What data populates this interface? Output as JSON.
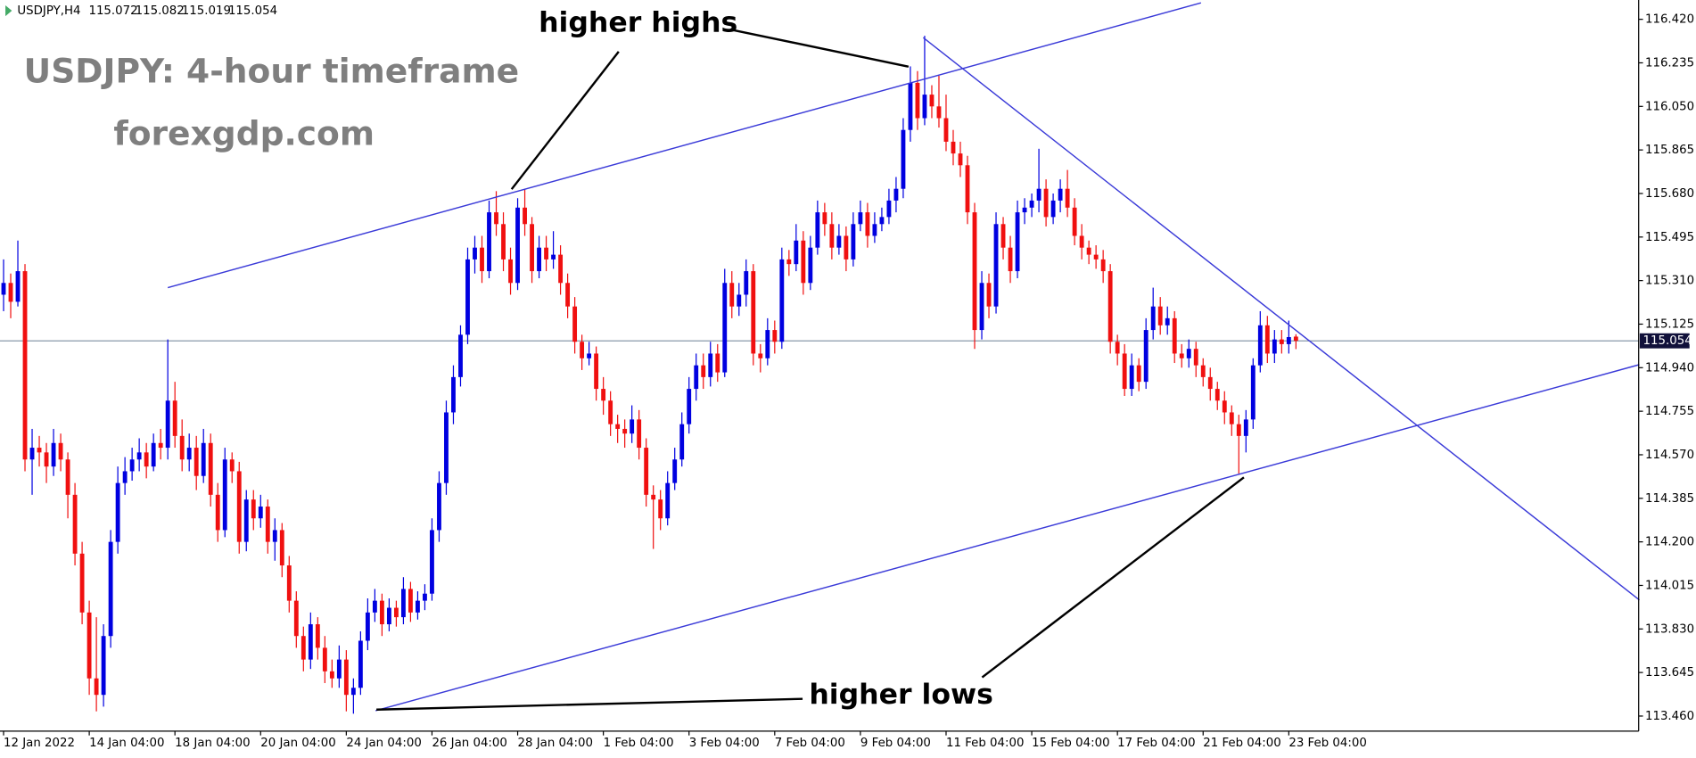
{
  "chart_data": {
    "type": "candlestick",
    "symbol": "USDJPY,H4",
    "title": "USDJPY: 4-hour timeframe",
    "subtitle": "forexgdp.com",
    "annotations": [
      "higher highs",
      "higher lows"
    ],
    "up_color": "#0000e0",
    "down_color": "#f01010",
    "trendline_color": "#3a3ad8",
    "price_line_color": "#8899aa",
    "grid": false,
    "xlim": [
      -0.5,
      229
    ],
    "ylim": [
      113.396,
      116.502
    ],
    "yticks": [
      {
        "value": 116.42,
        "label": "116.420"
      },
      116.235,
      {
        "value": 116.05,
        "label": "116.050"
      },
      115.865,
      {
        "value": 115.68,
        "label": "115.680"
      },
      115.495,
      {
        "value": 115.31,
        "label": "115.310"
      },
      115.125,
      {
        "value": 114.94,
        "label": "114.940"
      },
      114.755,
      {
        "value": 114.57,
        "label": "114.570"
      },
      114.385,
      {
        "value": 114.2,
        "label": "114.200"
      },
      114.015,
      {
        "value": 113.83,
        "label": "113.830"
      },
      113.645,
      {
        "value": 113.46,
        "label": "113.460"
      }
    ],
    "xticks": [
      {
        "value": 0,
        "label": "12 Jan 2022"
      },
      {
        "value": 12,
        "label": "14 Jan 04:00"
      },
      {
        "value": 24,
        "label": "18 Jan 04:00"
      },
      {
        "value": 36,
        "label": "20 Jan 04:00"
      },
      {
        "value": 48,
        "label": "24 Jan 04:00"
      },
      {
        "value": 60,
        "label": "26 Jan 04:00"
      },
      {
        "value": 72,
        "label": "28 Jan 04:00"
      },
      {
        "value": 84,
        "label": "1 Feb 04:00"
      },
      {
        "value": 96,
        "label": "3 Feb 04:00"
      },
      {
        "value": 108,
        "label": "7 Feb 04:00"
      },
      {
        "value": 120,
        "label": "9 Feb 04:00"
      },
      {
        "value": 132,
        "label": "11 Feb 04:00"
      },
      {
        "value": 144,
        "label": "15 Feb 04:00"
      },
      {
        "value": 156,
        "label": "17 Feb 04:00"
      },
      {
        "value": 168,
        "label": "21 Feb 04:00"
      },
      {
        "value": 180,
        "label": "23 Feb 04:00"
      }
    ],
    "trendlines": [
      {
        "x": [
          23,
          167.7
        ],
        "y": [
          115.28,
          116.49
        ]
      },
      {
        "x": [
          52.1,
          229.1
        ],
        "y": [
          113.483,
          114.953
        ]
      },
      {
        "x": [
          128.8,
          229.1
        ],
        "y": [
          116.342,
          113.953
        ]
      }
    ],
    "ohlc": [
      [
        115.25,
        115.4,
        115.18,
        115.3
      ],
      [
        115.3,
        115.34,
        115.15,
        115.22
      ],
      [
        115.22,
        115.48,
        115.2,
        115.35
      ],
      [
        115.35,
        115.38,
        114.5,
        114.55
      ],
      [
        114.55,
        114.68,
        114.4,
        114.6
      ],
      [
        114.6,
        114.65,
        114.52,
        114.58
      ],
      [
        114.58,
        114.62,
        114.45,
        114.52
      ],
      [
        114.52,
        114.68,
        114.48,
        114.62
      ],
      [
        114.62,
        114.66,
        114.5,
        114.55
      ],
      [
        114.55,
        114.58,
        114.3,
        114.4
      ],
      [
        114.4,
        114.45,
        114.1,
        114.15
      ],
      [
        114.15,
        114.2,
        113.85,
        113.9
      ],
      [
        113.9,
        113.95,
        113.55,
        113.62
      ],
      [
        113.62,
        113.88,
        113.48,
        113.55
      ],
      [
        113.55,
        113.85,
        113.5,
        113.8
      ],
      [
        113.8,
        114.25,
        113.75,
        114.2
      ],
      [
        114.2,
        114.52,
        114.15,
        114.45
      ],
      [
        114.45,
        114.56,
        114.4,
        114.5
      ],
      [
        114.5,
        114.6,
        114.46,
        114.55
      ],
      [
        114.55,
        114.64,
        114.5,
        114.58
      ],
      [
        114.58,
        114.62,
        114.47,
        114.52
      ],
      [
        114.52,
        114.66,
        114.5,
        114.62
      ],
      [
        114.62,
        114.68,
        114.55,
        114.6
      ],
      [
        114.6,
        115.06,
        114.55,
        114.8
      ],
      [
        114.8,
        114.88,
        114.6,
        114.65
      ],
      [
        114.65,
        114.72,
        114.5,
        114.55
      ],
      [
        114.55,
        114.66,
        114.5,
        114.6
      ],
      [
        114.6,
        114.65,
        114.42,
        114.48
      ],
      [
        114.48,
        114.68,
        114.45,
        114.62
      ],
      [
        114.62,
        114.66,
        114.35,
        114.4
      ],
      [
        114.4,
        114.45,
        114.2,
        114.25
      ],
      [
        114.25,
        114.6,
        114.22,
        114.55
      ],
      [
        114.55,
        114.58,
        114.45,
        114.5
      ],
      [
        114.5,
        114.54,
        114.15,
        114.2
      ],
      [
        114.2,
        114.42,
        114.16,
        114.38
      ],
      [
        114.38,
        114.42,
        114.25,
        114.3
      ],
      [
        114.3,
        114.4,
        114.26,
        114.35
      ],
      [
        114.35,
        114.38,
        114.15,
        114.2
      ],
      [
        114.2,
        114.3,
        114.12,
        114.25
      ],
      [
        114.25,
        114.28,
        114.05,
        114.1
      ],
      [
        114.1,
        114.14,
        113.9,
        113.95
      ],
      [
        113.95,
        113.99,
        113.75,
        113.8
      ],
      [
        113.8,
        113.84,
        113.65,
        113.7
      ],
      [
        113.7,
        113.9,
        113.66,
        113.85
      ],
      [
        113.85,
        113.88,
        113.7,
        113.75
      ],
      [
        113.75,
        113.8,
        113.6,
        113.65
      ],
      [
        113.65,
        113.7,
        113.58,
        113.62
      ],
      [
        113.62,
        113.76,
        113.58,
        113.7
      ],
      [
        113.7,
        113.74,
        113.48,
        113.55
      ],
      [
        113.55,
        113.62,
        113.47,
        113.58
      ],
      [
        113.58,
        113.82,
        113.55,
        113.78
      ],
      [
        113.78,
        113.96,
        113.74,
        113.9
      ],
      [
        113.9,
        114.0,
        113.86,
        113.95
      ],
      [
        113.95,
        113.98,
        113.8,
        113.85
      ],
      [
        113.85,
        113.96,
        113.82,
        113.92
      ],
      [
        113.92,
        113.95,
        113.84,
        113.88
      ],
      [
        113.88,
        114.05,
        113.85,
        114.0
      ],
      [
        114.0,
        114.03,
        113.86,
        113.9
      ],
      [
        113.9,
        113.99,
        113.87,
        113.95
      ],
      [
        113.95,
        114.02,
        113.91,
        113.98
      ],
      [
        113.98,
        114.3,
        113.95,
        114.25
      ],
      [
        114.25,
        114.5,
        114.2,
        114.45
      ],
      [
        114.45,
        114.8,
        114.4,
        114.75
      ],
      [
        114.75,
        114.95,
        114.7,
        114.9
      ],
      [
        114.9,
        115.12,
        114.86,
        115.08
      ],
      [
        115.08,
        115.45,
        115.04,
        115.4
      ],
      [
        115.4,
        115.5,
        115.34,
        115.45
      ],
      [
        115.45,
        115.5,
        115.3,
        115.35
      ],
      [
        115.35,
        115.65,
        115.32,
        115.6
      ],
      [
        115.6,
        115.69,
        115.5,
        115.55
      ],
      [
        115.55,
        115.6,
        115.35,
        115.4
      ],
      [
        115.4,
        115.45,
        115.25,
        115.3
      ],
      [
        115.3,
        115.66,
        115.27,
        115.62
      ],
      [
        115.62,
        115.7,
        115.5,
        115.55
      ],
      [
        115.55,
        115.58,
        115.3,
        115.35
      ],
      [
        115.35,
        115.5,
        115.32,
        115.45
      ],
      [
        115.45,
        115.5,
        115.35,
        115.4
      ],
      [
        115.4,
        115.52,
        115.36,
        115.42
      ],
      [
        115.42,
        115.46,
        115.25,
        115.3
      ],
      [
        115.3,
        115.34,
        115.15,
        115.2
      ],
      [
        115.2,
        115.24,
        115.0,
        115.05
      ],
      [
        115.05,
        115.08,
        114.93,
        114.98
      ],
      [
        114.98,
        115.05,
        114.95,
        115.0
      ],
      [
        115.0,
        115.03,
        114.8,
        114.85
      ],
      [
        114.85,
        114.9,
        114.74,
        114.8
      ],
      [
        114.8,
        114.84,
        114.65,
        114.7
      ],
      [
        114.7,
        114.74,
        114.62,
        114.68
      ],
      [
        114.68,
        114.72,
        114.6,
        114.66
      ],
      [
        114.66,
        114.78,
        114.62,
        114.72
      ],
      [
        114.72,
        114.76,
        114.55,
        114.6
      ],
      [
        114.6,
        114.64,
        114.35,
        114.4
      ],
      [
        114.4,
        114.44,
        114.17,
        114.38
      ],
      [
        114.38,
        114.42,
        114.25,
        114.3
      ],
      [
        114.3,
        114.5,
        114.27,
        114.45
      ],
      [
        114.45,
        114.6,
        114.42,
        114.55
      ],
      [
        114.55,
        114.75,
        114.52,
        114.7
      ],
      [
        114.7,
        114.9,
        114.66,
        114.85
      ],
      [
        114.85,
        115.0,
        114.8,
        114.95
      ],
      [
        114.95,
        115.0,
        114.85,
        114.9
      ],
      [
        114.9,
        115.05,
        114.86,
        115.0
      ],
      [
        115.0,
        115.04,
        114.88,
        114.92
      ],
      [
        114.92,
        115.36,
        114.9,
        115.3
      ],
      [
        115.3,
        115.35,
        115.15,
        115.2
      ],
      [
        115.2,
        115.3,
        115.16,
        115.25
      ],
      [
        115.25,
        115.4,
        115.2,
        115.35
      ],
      [
        115.35,
        115.38,
        114.95,
        115.0
      ],
      [
        115.0,
        115.04,
        114.92,
        114.98
      ],
      [
        114.98,
        115.15,
        114.95,
        115.1
      ],
      [
        115.1,
        115.14,
        115.0,
        115.05
      ],
      [
        115.05,
        115.45,
        115.02,
        115.4
      ],
      [
        115.4,
        115.44,
        115.33,
        115.38
      ],
      [
        115.38,
        115.55,
        115.35,
        115.48
      ],
      [
        115.48,
        115.52,
        115.25,
        115.3
      ],
      [
        115.3,
        115.5,
        115.27,
        115.45
      ],
      [
        115.45,
        115.65,
        115.42,
        115.6
      ],
      [
        115.6,
        115.64,
        115.5,
        115.55
      ],
      [
        115.55,
        115.6,
        115.4,
        115.45
      ],
      [
        115.45,
        115.55,
        115.42,
        115.5
      ],
      [
        115.5,
        115.54,
        115.35,
        115.4
      ],
      [
        115.4,
        115.6,
        115.37,
        115.55
      ],
      [
        115.55,
        115.65,
        115.52,
        115.6
      ],
      [
        115.6,
        115.64,
        115.45,
        115.5
      ],
      [
        115.5,
        115.6,
        115.47,
        115.55
      ],
      [
        115.55,
        115.62,
        115.52,
        115.58
      ],
      [
        115.58,
        115.7,
        115.55,
        115.65
      ],
      [
        115.65,
        115.75,
        115.6,
        115.7
      ],
      [
        115.7,
        116.0,
        115.66,
        115.95
      ],
      [
        115.95,
        116.22,
        115.9,
        116.15
      ],
      [
        116.15,
        116.2,
        115.95,
        116.0
      ],
      [
        116.0,
        116.35,
        115.97,
        116.1
      ],
      [
        116.1,
        116.14,
        116.0,
        116.05
      ],
      [
        116.05,
        116.18,
        115.96,
        116.0
      ],
      [
        116.0,
        116.1,
        115.86,
        115.9
      ],
      [
        115.9,
        115.95,
        115.8,
        115.85
      ],
      [
        115.85,
        115.9,
        115.75,
        115.8
      ],
      [
        115.8,
        115.84,
        115.55,
        115.6
      ],
      [
        115.6,
        115.64,
        115.02,
        115.1
      ],
      [
        115.1,
        115.35,
        115.06,
        115.3
      ],
      [
        115.3,
        115.34,
        115.15,
        115.2
      ],
      [
        115.2,
        115.6,
        115.17,
        115.55
      ],
      [
        115.55,
        115.58,
        115.4,
        115.45
      ],
      [
        115.45,
        115.5,
        115.3,
        115.35
      ],
      [
        115.35,
        115.65,
        115.32,
        115.6
      ],
      [
        115.6,
        115.66,
        115.55,
        115.62
      ],
      [
        115.62,
        115.68,
        115.58,
        115.65
      ],
      [
        115.65,
        115.87,
        115.6,
        115.7
      ],
      [
        115.7,
        115.74,
        115.54,
        115.58
      ],
      [
        115.58,
        115.68,
        115.55,
        115.65
      ],
      [
        115.65,
        115.74,
        115.6,
        115.7
      ],
      [
        115.7,
        115.78,
        115.58,
        115.62
      ],
      [
        115.62,
        115.66,
        115.46,
        115.5
      ],
      [
        115.5,
        115.55,
        115.4,
        115.45
      ],
      [
        115.45,
        115.48,
        115.38,
        115.42
      ],
      [
        115.42,
        115.46,
        115.36,
        115.4
      ],
      [
        115.4,
        115.44,
        115.3,
        115.35
      ],
      [
        115.35,
        115.38,
        115.0,
        115.05
      ],
      [
        115.05,
        115.08,
        114.95,
        115.0
      ],
      [
        115.0,
        115.04,
        114.82,
        114.85
      ],
      [
        114.85,
        115.0,
        114.82,
        114.95
      ],
      [
        114.95,
        114.98,
        114.84,
        114.88
      ],
      [
        114.88,
        115.15,
        114.85,
        115.1
      ],
      [
        115.1,
        115.28,
        115.06,
        115.2
      ],
      [
        115.2,
        115.24,
        115.08,
        115.12
      ],
      [
        115.12,
        115.2,
        115.08,
        115.15
      ],
      [
        115.15,
        115.18,
        114.96,
        115.0
      ],
      [
        115.0,
        115.04,
        114.94,
        114.98
      ],
      [
        114.98,
        115.06,
        114.94,
        115.02
      ],
      [
        115.02,
        115.05,
        114.9,
        114.95
      ],
      [
        114.95,
        114.98,
        114.86,
        114.9
      ],
      [
        114.9,
        114.94,
        114.8,
        114.85
      ],
      [
        114.85,
        114.88,
        114.76,
        114.8
      ],
      [
        114.8,
        114.84,
        114.7,
        114.75
      ],
      [
        114.75,
        114.78,
        114.65,
        114.7
      ],
      [
        114.7,
        114.74,
        114.49,
        114.65
      ],
      [
        114.65,
        114.76,
        114.58,
        114.72
      ],
      [
        114.72,
        114.98,
        114.68,
        114.95
      ],
      [
        114.95,
        115.18,
        114.92,
        115.12
      ],
      [
        115.12,
        115.16,
        114.96,
        115.0
      ],
      [
        115.0,
        115.1,
        114.96,
        115.06
      ],
      [
        115.06,
        115.1,
        115.0,
        115.04
      ],
      [
        115.04,
        115.14,
        115.0,
        115.07
      ],
      [
        115.072,
        115.082,
        115.019,
        115.054
      ]
    ]
  }
}
